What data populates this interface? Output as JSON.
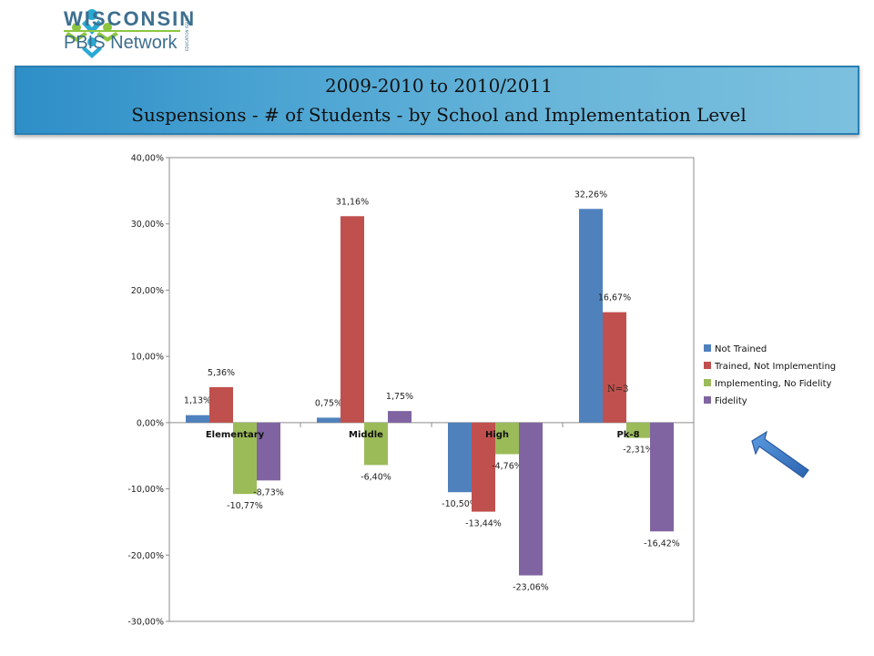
{
  "header": {
    "logo_line1": "WISCONSIN",
    "logo_line2": "PBIS Network",
    "logo_tag": "EDUCATION ISSUES",
    "title_line1": "2009-2010 to 2010/2011",
    "title_line2": "Suspensions - # of  Students - by School and Implementation Level"
  },
  "colors": {
    "banner": "#4aa3d2",
    "not_trained": "#4f81bd",
    "trained_not_implementing": "#c0504d",
    "implementing_no_fidelity": "#9bbb59",
    "fidelity": "#8064a2",
    "arrow": "#3a78c8"
  },
  "chart_data": {
    "type": "bar",
    "categories": [
      "Elementary",
      "Middle",
      "High",
      "Pk-8"
    ],
    "series": [
      {
        "name": "Not Trained",
        "values": [
          1.13,
          0.75,
          -10.5,
          32.26
        ],
        "labels": [
          "1,13%",
          "0,75%",
          "-10,50%",
          "32,26%"
        ],
        "color": "#4f81bd"
      },
      {
        "name": "Trained, Not Implementing",
        "values": [
          5.36,
          31.16,
          -13.44,
          16.67
        ],
        "labels": [
          "5,36%",
          "31,16%",
          "-13,44%",
          "16,67%"
        ],
        "color": "#c0504d"
      },
      {
        "name": "Implementing, No Fidelity",
        "values": [
          -10.77,
          -6.4,
          -4.76,
          -2.31
        ],
        "labels": [
          "-10,77%",
          "-6,40%",
          "-4,76%",
          "-2,31%"
        ],
        "color": "#9bbb59"
      },
      {
        "name": "Fidelity",
        "values": [
          -8.73,
          1.75,
          -23.06,
          -16.42
        ],
        "labels": [
          "-8,73%",
          "1,75%",
          "-23,06%",
          "-16,42%"
        ],
        "color": "#8064a2"
      }
    ],
    "ylim": [
      -30,
      40
    ],
    "yticks": [
      40,
      30,
      20,
      10,
      0,
      -10,
      -20,
      -30
    ],
    "ytick_labels": [
      "40,00%",
      "30,00%",
      "20,00%",
      "10,00%",
      "0,00%",
      "-10,00%",
      "-20,00%",
      "-30,00%"
    ],
    "annotation": "N=3",
    "legend": "right",
    "grid": false
  }
}
